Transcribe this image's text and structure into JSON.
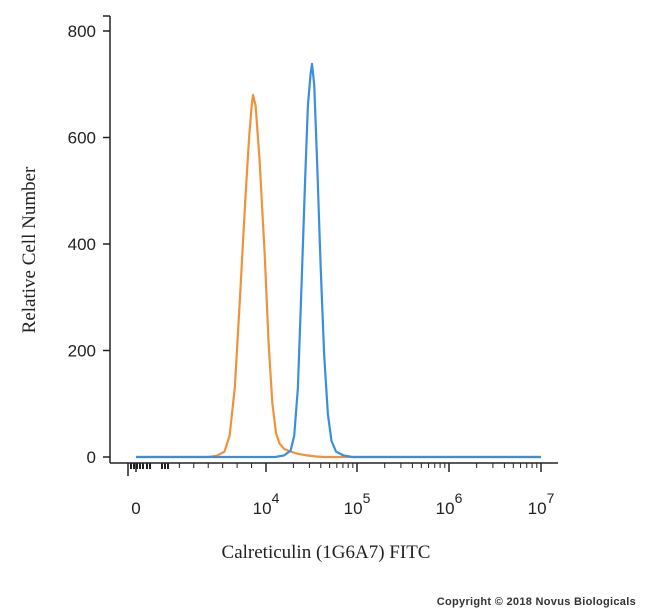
{
  "chart_data": {
    "type": "line",
    "xlabel": "Calreticulin (1G6A7) FITC",
    "ylabel": "Relative Cell Number",
    "ylim": [
      0,
      800
    ],
    "y_ticks": [
      "0",
      "200",
      "400",
      "600",
      "800"
    ],
    "x_tick_labels": [
      {
        "base": "0",
        "exp": ""
      },
      {
        "base": "10",
        "exp": "4"
      },
      {
        "base": "10",
        "exp": "5"
      },
      {
        "base": "10",
        "exp": "6"
      },
      {
        "base": "10",
        "exp": "7"
      }
    ],
    "grid": false,
    "series": [
      {
        "color": "#F0923A",
        "points": [
          [
            0,
            0
          ],
          [
            0.55,
            0
          ],
          [
            0.62,
            2
          ],
          [
            0.68,
            10
          ],
          [
            0.72,
            40
          ],
          [
            0.76,
            130
          ],
          [
            0.8,
            300
          ],
          [
            0.84,
            480
          ],
          [
            0.87,
            600
          ],
          [
            0.89,
            660
          ],
          [
            0.9,
            680
          ],
          [
            0.92,
            660
          ],
          [
            0.95,
            560
          ],
          [
            0.99,
            380
          ],
          [
            1.03,
            210
          ],
          [
            1.07,
            100
          ],
          [
            1.11,
            45
          ],
          [
            1.15,
            25
          ],
          [
            1.2,
            15
          ],
          [
            1.27,
            10
          ],
          [
            1.35,
            6
          ],
          [
            1.45,
            3
          ],
          [
            1.55,
            1
          ],
          [
            1.65,
            0
          ],
          [
            4.0,
            0
          ]
        ]
      },
      {
        "color": "#3A8EE0",
        "points": [
          [
            0,
            0
          ],
          [
            1.1,
            0
          ],
          [
            1.2,
            3
          ],
          [
            1.27,
            12
          ],
          [
            1.31,
            40
          ],
          [
            1.35,
            130
          ],
          [
            1.39,
            320
          ],
          [
            1.43,
            520
          ],
          [
            1.46,
            660
          ],
          [
            1.49,
            720
          ],
          [
            1.505,
            738
          ],
          [
            1.53,
            700
          ],
          [
            1.56,
            560
          ],
          [
            1.6,
            360
          ],
          [
            1.64,
            190
          ],
          [
            1.68,
            80
          ],
          [
            1.72,
            30
          ],
          [
            1.77,
            10
          ],
          [
            1.85,
            3
          ],
          [
            1.95,
            0
          ],
          [
            4.0,
            0
          ]
        ]
      }
    ]
  },
  "copyright": "Copyright © 2018 Novus Biologicals"
}
